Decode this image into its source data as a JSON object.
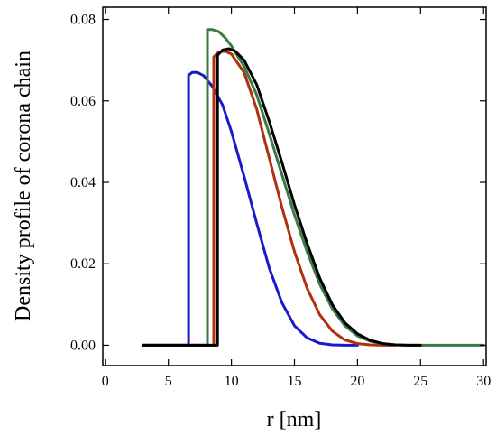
{
  "chart_data": {
    "type": "line",
    "title": "",
    "xlabel": "r [nm]",
    "ylabel": "Density profile of corona chain",
    "xlim": [
      -0.2,
      30.2
    ],
    "ylim": [
      -0.005,
      0.083
    ],
    "xticks": [
      0,
      5,
      10,
      15,
      20,
      25,
      30
    ],
    "yticks": [
      0.0,
      0.02,
      0.04,
      0.06,
      0.08
    ],
    "xtick_labels": [
      "0",
      "5",
      "10",
      "15",
      "20",
      "25",
      "30"
    ],
    "ytick_labels": [
      "0.00",
      "0.02",
      "0.04",
      "0.06",
      "0.08"
    ],
    "grid": false,
    "legend": "none",
    "series": [
      {
        "color": "#1a1acc",
        "x": [
          3,
          6.6,
          6.6,
          6.9,
          7.3,
          7.8,
          8.5,
          9.3,
          10.0,
          11.0,
          12.0,
          13.0,
          14.0,
          15.0,
          16.0,
          17.0,
          18.0,
          19.0,
          20.0
        ],
        "y": [
          0,
          0,
          0.0663,
          0.067,
          0.067,
          0.0662,
          0.0635,
          0.059,
          0.0525,
          0.0415,
          0.03,
          0.019,
          0.0105,
          0.0048,
          0.0018,
          0.0005,
          0.0001,
          0,
          0
        ]
      },
      {
        "color": "#b03010",
        "x": [
          3,
          8.6,
          8.6,
          9.0,
          9.5,
          10.0,
          11.0,
          12.0,
          13.0,
          14.0,
          15.0,
          16.0,
          17.0,
          18.0,
          19.0,
          20.0,
          21.0,
          22.0,
          23.0
        ],
        "y": [
          0,
          0,
          0.0708,
          0.072,
          0.0722,
          0.0715,
          0.067,
          0.058,
          0.046,
          0.034,
          0.023,
          0.014,
          0.0075,
          0.0035,
          0.0013,
          0.0004,
          0.0001,
          0,
          0
        ]
      },
      {
        "color": "#3a7a45",
        "x": [
          3,
          8.1,
          8.1,
          8.5,
          9.0,
          9.5,
          10.0,
          11.0,
          12.0,
          13.0,
          14.0,
          15.0,
          16.0,
          17.0,
          18.0,
          19.0,
          20.0,
          21.0,
          22.0,
          23.0,
          24.0,
          25.0,
          30.0
        ],
        "y": [
          0,
          0,
          0.0775,
          0.0775,
          0.077,
          0.0755,
          0.0735,
          0.0685,
          0.0615,
          0.052,
          0.042,
          0.032,
          0.023,
          0.015,
          0.009,
          0.0048,
          0.0023,
          0.001,
          0.0004,
          0.0001,
          0,
          0,
          0
        ]
      },
      {
        "color": "#000000",
        "x": [
          3,
          8.9,
          8.9,
          9.3,
          9.8,
          10.3,
          11.0,
          12.0,
          13.0,
          14.0,
          15.0,
          16.0,
          17.0,
          18.0,
          19.0,
          20.0,
          21.0,
          22.0,
          23.0,
          24.0,
          25.0
        ],
        "y": [
          0,
          0,
          0.0712,
          0.0725,
          0.0728,
          0.0722,
          0.07,
          0.064,
          0.055,
          0.045,
          0.0345,
          0.025,
          0.0165,
          0.01,
          0.0055,
          0.0028,
          0.0012,
          0.0004,
          0.0001,
          0,
          0
        ]
      }
    ]
  }
}
